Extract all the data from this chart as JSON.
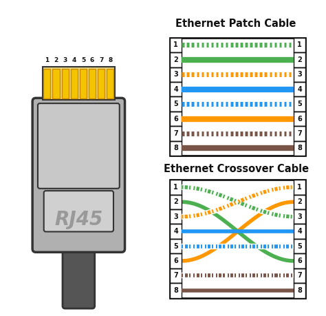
{
  "bg_color": "#ffffff",
  "title_patch": "Ethernet Patch Cable",
  "title_cross": "Ethernet Crossover Cable",
  "pin_colors": [
    {
      "main": "#4caf50",
      "solid": false
    },
    {
      "main": "#4caf50",
      "solid": true
    },
    {
      "main": "#ff9800",
      "solid": false
    },
    {
      "main": "#2196f3",
      "solid": true
    },
    {
      "main": "#2196f3",
      "solid": false
    },
    {
      "main": "#ff9800",
      "solid": true
    },
    {
      "main": "#795548",
      "solid": false
    },
    {
      "main": "#795548",
      "solid": true
    }
  ],
  "crossover_map": [
    3,
    6,
    1,
    4,
    5,
    2,
    7,
    8
  ],
  "pin_gold": "#f5c400",
  "pin_bg": "#e8d880",
  "body_gray": "#b0b0b0",
  "body_dark": "#888888",
  "body_border": "#333333",
  "cable_gray": "#555555",
  "label_color": "#111111",
  "box_border": "#111111",
  "white": "#ffffff",
  "latch_gray": "#d0d0d0",
  "rj45_text": "#999999"
}
